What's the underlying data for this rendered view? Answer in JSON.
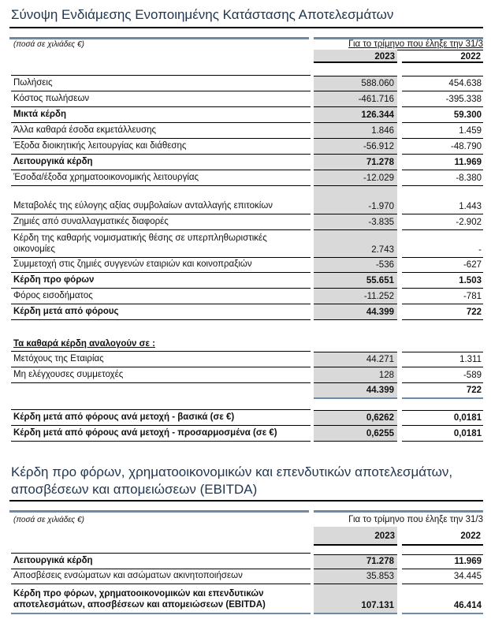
{
  "income_statement": {
    "title": "Σύνοψη Ενδιάμεσης Ενοποιημένης Κατάστασης Αποτελεσμάτων",
    "units": "(ποσά σε χιλιάδες €)",
    "period_header": "Για το τρίμηνο που έληξε την 31/3",
    "years": [
      "2023",
      "2022"
    ],
    "rows": [
      {
        "label": "Πωλήσεις",
        "v2023": "588.060",
        "v2022": "454.638"
      },
      {
        "label": "Κόστος πωλήσεων",
        "v2023": "-461.716",
        "v2022": "-395.338"
      },
      {
        "label": "Μικτά κέρδη",
        "v2023": "126.344",
        "v2022": "59.300"
      },
      {
        "label": "Άλλα καθαρά έσοδα εκμετάλλευσης",
        "v2023": "1.846",
        "v2022": "1.459"
      },
      {
        "label": "Έξοδα διοικητικής λειτουργίας και διάθεσης",
        "v2023": "-56.912",
        "v2022": "-48.790"
      },
      {
        "label": "Λειτουργικά κέρδη",
        "v2023": "71.278",
        "v2022": "11.969"
      },
      {
        "label": "Έσοδα/έξοδα χρηματοοικονομικής λειτουργίας",
        "v2023": "-12.029",
        "v2022": "-8.380"
      },
      {
        "label": "Μεταβολές της εύλογης αξίας συμβολαίων ανταλλαγής επιτοκίων",
        "v2023": "-1.970",
        "v2022": "1.443"
      },
      {
        "label": "Ζημιές από συναλλαγματικές διαφορές",
        "v2023": "-3.835",
        "v2022": "-2.902"
      },
      {
        "label": "Κέρδη της καθαρής νομισματικής θέσης σε υπερπληθωριστικές οικονομίες",
        "v2023": "2.743",
        "v2022": "-"
      },
      {
        "label": "Συμμετοχή στις ζημιές συγγενών εταιριών και κοινοπραξιών",
        "v2023": "-536",
        "v2022": "-627"
      },
      {
        "label": "Κέρδη προ φόρων",
        "v2023": "55.651",
        "v2022": "1.503"
      },
      {
        "label": "Φόρος εισοδήματος",
        "v2023": "-11.252",
        "v2022": "-781"
      },
      {
        "label": "Κέρδη μετά από φόρους",
        "v2023": "44.399",
        "v2022": "722"
      }
    ],
    "attribution_header": "Τα καθαρά κέρδη αναλογούν σε :",
    "attribution": [
      {
        "label": "Μετόχους της Εταιρίας",
        "v2023": "44.271",
        "v2022": "1.311"
      },
      {
        "label": "Μη ελέγχουσες συμμετοχές",
        "v2023": "128",
        "v2022": "-589"
      }
    ],
    "attribution_total": {
      "v2023": "44.399",
      "v2022": "722"
    },
    "eps": [
      {
        "label": "Κέρδη μετά από φόρους ανά μετοχή - βασικά (σε €)",
        "v2023": "0,6262",
        "v2022": "0,0181"
      },
      {
        "label": "Κέρδη μετά από φόρους ανά μετοχή - προσαρμοσμένα (σε €)",
        "v2023": "0,6255",
        "v2022": "0,0181"
      }
    ]
  },
  "ebitda": {
    "title": "Κέρδη προ φόρων, χρηματοοικονομικών και επενδυτικών αποτελεσμάτων, αποσβέσεων και απομειώσεων (EBITDA)",
    "units": "(ποσά σε χιλιάδες €)",
    "period_header": "Για το τρίμηνο που έληξε την 31/3",
    "years": [
      "2023",
      "2022"
    ],
    "rows": [
      {
        "label": "Λειτουργικά κέρδη",
        "v2023": "71.278",
        "v2022": "11.969"
      },
      {
        "label": "Αποσβέσεις ενσώματων και ασώματων ακινητοποιήσεων",
        "v2023": "35.853",
        "v2022": "34.445"
      },
      {
        "label": "Κέρδη προ φόρων, χρηματοοικονομικών και επενδυτικών αποτελεσμάτων, αποσβέσεων και απομειώσεων (EBITDA)",
        "v2023": "107.131",
        "v2022": "46.414"
      }
    ]
  }
}
